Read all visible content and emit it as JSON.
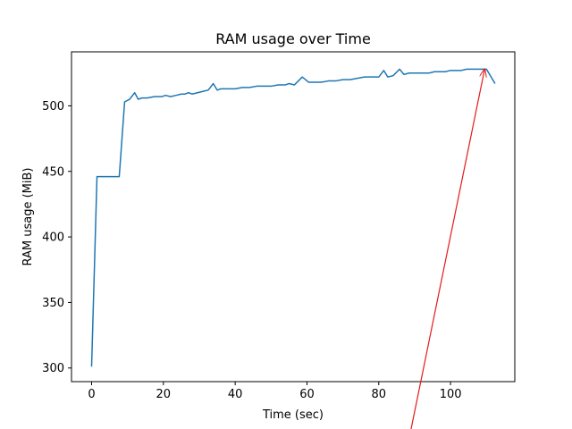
{
  "chart_data": {
    "type": "line",
    "title": "RAM usage over Time",
    "xlabel": "Time (sec)",
    "ylabel": "RAM usage (MiB)",
    "xlim": [
      -5.6,
      117.9
    ],
    "ylim": [
      289.6,
      541.2
    ],
    "xticks": [
      0,
      20,
      40,
      60,
      80,
      100
    ],
    "yticks": [
      300,
      350,
      400,
      450,
      500
    ],
    "grid": false,
    "legend": "none",
    "series": [
      {
        "color": "#1f77b4",
        "x": [
          0,
          0.9,
          1.5,
          2.5,
          5,
          7.7,
          9.2,
          10.6,
          12.0,
          13.0,
          14.0,
          15.5,
          17.5,
          19.5,
          20.6,
          22.0,
          23.5,
          25.0,
          26.0,
          27.0,
          28.0,
          29.5,
          31.0,
          32.5,
          33.9,
          35.0,
          36.0,
          38.0,
          40.0,
          42.0,
          44.0,
          46.0,
          48.0,
          50.0,
          52.0,
          54.0,
          55.0,
          56.5,
          58.7,
          60.5,
          62.0,
          64.0,
          66.0,
          68.0,
          70.0,
          72.0,
          74.0,
          76.0,
          78.0,
          80.0,
          81.4,
          82.5,
          84.0,
          85.8,
          87.0,
          88.5,
          90.0,
          92.0,
          94.0,
          95.5,
          97.0,
          98.5,
          100.0,
          101.5,
          103.0,
          104.5,
          106.0,
          108.0,
          110.0,
          112.4
        ],
        "y": [
          301,
          388,
          446,
          446,
          446,
          446,
          503,
          505,
          510,
          505,
          506,
          506,
          507,
          507,
          508,
          507,
          508,
          509,
          509,
          510,
          509,
          510,
          511,
          512,
          517,
          512,
          513,
          513,
          513,
          514,
          514,
          515,
          515,
          515,
          516,
          516,
          517,
          516,
          522,
          518,
          518,
          518,
          519,
          519,
          520,
          520,
          521,
          522,
          522,
          522,
          527,
          522,
          523,
          528,
          524,
          525,
          525,
          525,
          525,
          526,
          526,
          526,
          527,
          527,
          527,
          528,
          528,
          528,
          528,
          517
        ]
      }
    ],
    "annotations": [
      {
        "type": "arrow",
        "from": [
          88,
          240
        ],
        "to": [
          109.5,
          528
        ],
        "color": "#e41a1c"
      }
    ]
  }
}
